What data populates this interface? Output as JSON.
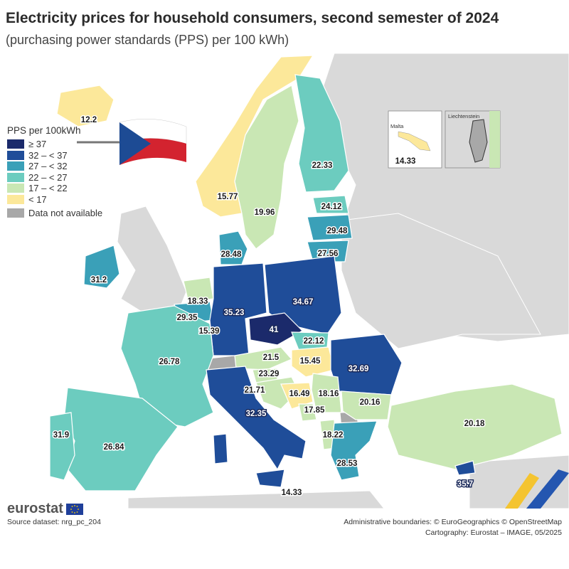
{
  "title": "Electricity prices for household consumers, second semester of 2024",
  "subtitle": "(purchasing power standards (PPS) per 100 kWh)",
  "legend": {
    "title": "PPS per 100kWh",
    "classes": [
      {
        "label": "≥ 37",
        "color": "#1b2a6b"
      },
      {
        "label": "32 – < 37",
        "color": "#1f4d99"
      },
      {
        "label": "27 – < 32",
        "color": "#3aa0b8"
      },
      {
        "label": "22 – < 27",
        "color": "#6cccbf"
      },
      {
        "label": "17 – < 22",
        "color": "#c9e7b4"
      },
      {
        "label": "< 17",
        "color": "#fce89a"
      }
    ],
    "na": {
      "label": "Data not available",
      "color": "#a8a8a8"
    }
  },
  "colors": {
    "sea": "#ffffff",
    "non_eu": "#d9d9d9",
    "border": "#ffffff"
  },
  "values": {
    "iceland": "12.2",
    "norway": "15.77",
    "sweden": "19.96",
    "finland": "22.33",
    "estonia": "24.12",
    "latvia": "29.48",
    "lithuania": "27.56",
    "denmark": "28.48",
    "ireland": "31.2",
    "netherlands": "18.33",
    "belgium": "29.35",
    "luxembourg": "15.39",
    "germany": "35.23",
    "poland": "34.67",
    "czechia": "41",
    "slovakia": "22.12",
    "austria": "21.5",
    "hungary": "15.45",
    "romania": "32.69",
    "france": "26.78",
    "slovenia": "23.29",
    "croatia": "21.71",
    "bosnia": "16.49",
    "serbia": "18.16",
    "montenegro": "17.85",
    "bulgaria": "20.16",
    "albania": "18.22",
    "italy": "32.35",
    "spain": "26.84",
    "portugal": "31.9",
    "greece": "28.53",
    "turkey": "20.18",
    "cyprus": "35.7",
    "malta": "14.33",
    "italy_south": "14.33"
  },
  "insets": {
    "malta_title": "Malta",
    "malta_value": "14.33",
    "liechtenstein_title": "Liechtenstein"
  },
  "brand": "eurostat",
  "source": "Source dataset: nrg_pc_204",
  "credits": {
    "line1": "Administrative boundaries: © EuroGeographics © OpenStreetMap",
    "line2": "Cartography: Eurostat – IMAGE, 05/2025"
  }
}
